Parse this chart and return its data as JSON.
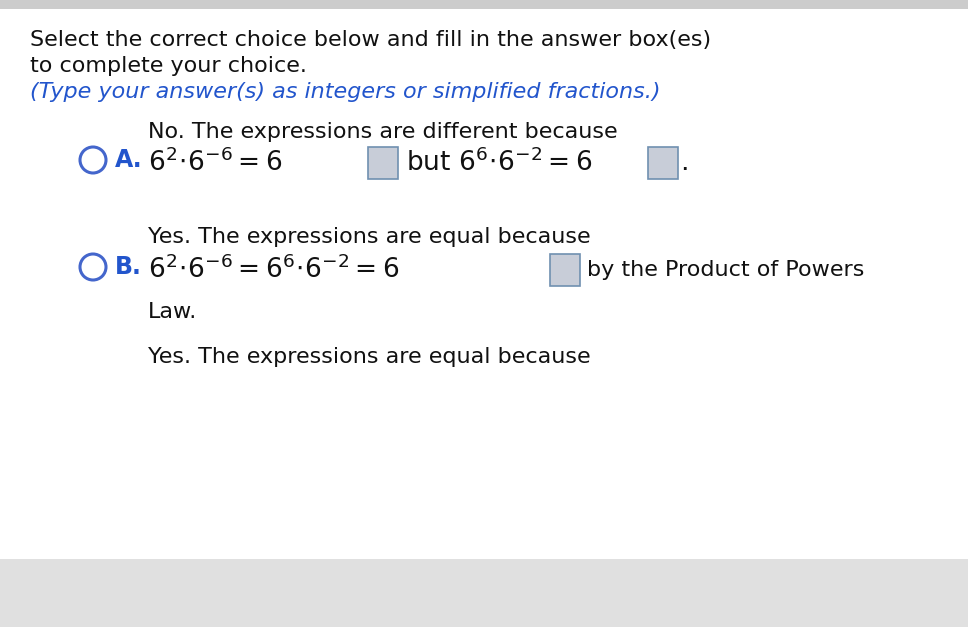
{
  "bg_color": "#ffffff",
  "bottom_bg_color": "#e0e0e0",
  "title_line1": "Select the correct choice below and fill in the answer box(es)",
  "title_line2": "to complete your choice.",
  "subtitle": "(Type your answer(s) as integers or simplified fractions.)",
  "subtitle_color": "#2255cc",
  "option_a_label": "A.",
  "option_a_label_color": "#2255cc",
  "option_a_header": "No. The expressions are different because",
  "option_b_label": "B.",
  "option_b_label_color": "#2255cc",
  "option_b_header": "Yes. The expressions are equal because",
  "option_b_line2": "Law.",
  "option_c_header": "Yes. The expressions are equal because",
  "circle_color": "#4466cc",
  "box_fill": "#c8cdd8",
  "box_edge": "#7090b0",
  "text_color": "#111111",
  "font_size_main": 16,
  "font_size_math": 18
}
